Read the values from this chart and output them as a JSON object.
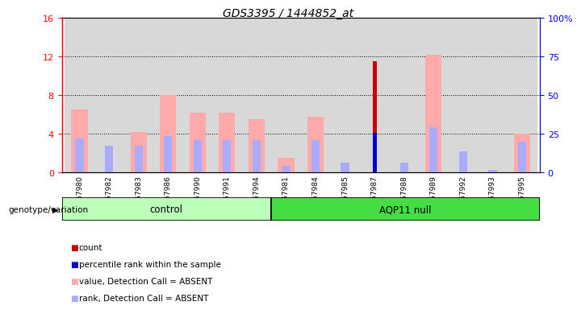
{
  "title": "GDS3395 / 1444852_at",
  "samples": [
    "GSM267980",
    "GSM267982",
    "GSM267983",
    "GSM267986",
    "GSM267990",
    "GSM267991",
    "GSM267994",
    "GSM267981",
    "GSM267984",
    "GSM267985",
    "GSM267987",
    "GSM267988",
    "GSM267989",
    "GSM267992",
    "GSM267993",
    "GSM267995"
  ],
  "groups": [
    "control",
    "control",
    "control",
    "control",
    "control",
    "control",
    "control",
    "AQP11 null",
    "AQP11 null",
    "AQP11 null",
    "AQP11 null",
    "AQP11 null",
    "AQP11 null",
    "AQP11 null",
    "AQP11 null",
    "AQP11 null"
  ],
  "count_values": [
    0,
    0,
    0,
    0,
    0,
    0,
    0,
    0,
    0,
    0,
    11.5,
    0,
    0,
    0,
    0,
    0
  ],
  "rank_values": [
    0,
    0,
    0,
    0,
    0,
    0,
    0,
    0,
    0,
    0,
    4.1,
    0,
    0,
    0,
    0,
    0
  ],
  "pink_values": [
    6.5,
    0,
    4.2,
    8.0,
    6.2,
    6.2,
    5.5,
    1.5,
    5.8,
    0,
    0,
    0,
    12.2,
    0,
    0,
    4.0
  ],
  "lavender_values": [
    3.5,
    2.8,
    2.8,
    3.8,
    3.4,
    3.4,
    3.4,
    0.7,
    3.4,
    1.0,
    0,
    1.0,
    4.7,
    2.2,
    0.3,
    3.2
  ],
  "ylim_left": [
    0,
    16
  ],
  "ylim_right": [
    0,
    100
  ],
  "yticks_left": [
    0,
    4,
    8,
    12,
    16
  ],
  "yticks_right": [
    0,
    25,
    50,
    75,
    100
  ],
  "ytick_labels_left": [
    "0",
    "4",
    "8",
    "12",
    "16"
  ],
  "ytick_labels_right": [
    "0",
    "25",
    "50",
    "75",
    "100%"
  ],
  "color_count": "#cc0000",
  "color_rank": "#0000cc",
  "color_pink": "#ffaaaa",
  "color_lavender": "#aaaaff",
  "color_ctrl_bg": "#bbffbb",
  "color_aqp_bg": "#44dd44",
  "control_label": "control",
  "aqp_label": "AQP11 null",
  "genotype_label": "genotype/variation",
  "legend_items": [
    "count",
    "percentile rank within the sample",
    "value, Detection Call = ABSENT",
    "rank, Detection Call = ABSENT"
  ],
  "ctrl_count": 7,
  "aqp_count": 9
}
